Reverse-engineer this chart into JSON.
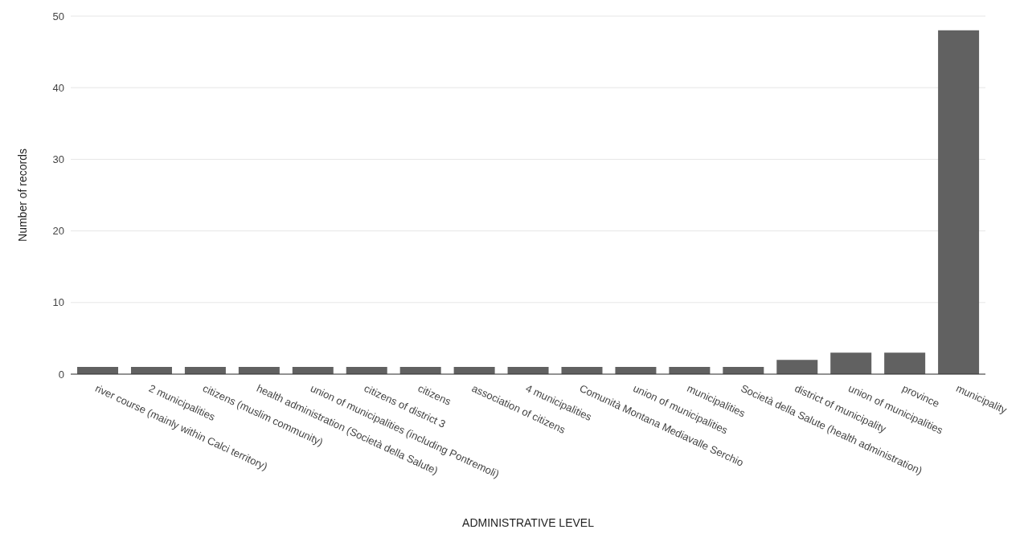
{
  "chart_data": {
    "type": "bar",
    "xlabel": "ADMINISTRATIVE LEVEL",
    "ylabel": "Number of records",
    "categories": [
      "river course (mainly within Calci territory)",
      "2 municipalities",
      "citizens (muslim community)",
      "health administration (Società della Salute)",
      "union of municipalities (including Pontremoli)",
      "citizens of district 3",
      "citizens",
      "association of citizens",
      "4 municipalities",
      "Comunità Montana Mediavalle Serchio",
      "union of municipalities",
      "municipalities",
      "Società della Salute (health administration)",
      "district of municipality",
      "union of municipalities",
      "province",
      "municipality"
    ],
    "values": [
      1,
      1,
      1,
      1,
      1,
      1,
      1,
      1,
      1,
      1,
      1,
      1,
      1,
      2,
      3,
      3,
      48
    ],
    "color": "#616161",
    "ylim": [
      0,
      50
    ],
    "yticks": [
      0,
      10,
      20,
      30,
      40,
      50
    ],
    "grid": "y"
  }
}
